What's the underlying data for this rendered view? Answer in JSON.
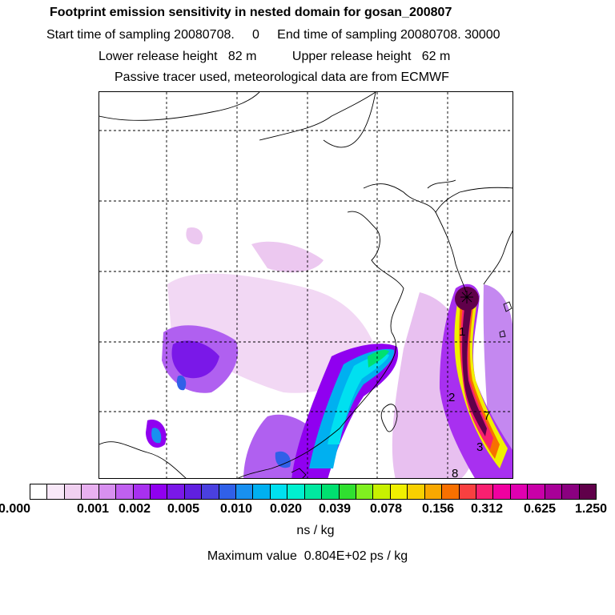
{
  "header": {
    "title": "Footprint emission sensitivity in nested domain for gosan_200807",
    "sampling": "Start time of sampling 20080708.     0     End time of sampling 20080708. 30000",
    "release": "Lower release height   82 m          Upper release height   62 m",
    "tracer": "Passive tracer used, meteorological data are from ECMWF"
  },
  "map": {
    "trajectory_points": [
      "1",
      "2",
      "3",
      "7",
      "8"
    ],
    "receptor_marker": "receptor-star-icon"
  },
  "colorbar": {
    "colors": [
      "#ffffff",
      "#f8e8f8",
      "#f0d0f0",
      "#e8b0f0",
      "#d890f0",
      "#c060f0",
      "#a830f0",
      "#9000f0",
      "#7a18e8",
      "#6020e0",
      "#4a40e0",
      "#3060e8",
      "#1890f0",
      "#00b0f0",
      "#00e0f0",
      "#00f0d0",
      "#00e8a0",
      "#00e070",
      "#30e030",
      "#80f020",
      "#c8f000",
      "#f0f000",
      "#f8d000",
      "#f8a800",
      "#f87000",
      "#f84040",
      "#f82070",
      "#f000a0",
      "#e000b0",
      "#c800a8",
      "#a80098",
      "#8a0080",
      "#60004a"
    ],
    "tick_labels": [
      "0.000",
      "0.001",
      "0.002",
      "0.005",
      "0.010",
      "0.020",
      "0.039",
      "0.078",
      "0.156",
      "0.312",
      "0.625",
      "1.250"
    ],
    "unit": "ns / kg"
  },
  "footer": {
    "max_value": "Maximum value  0.804E+02 ps / kg"
  }
}
